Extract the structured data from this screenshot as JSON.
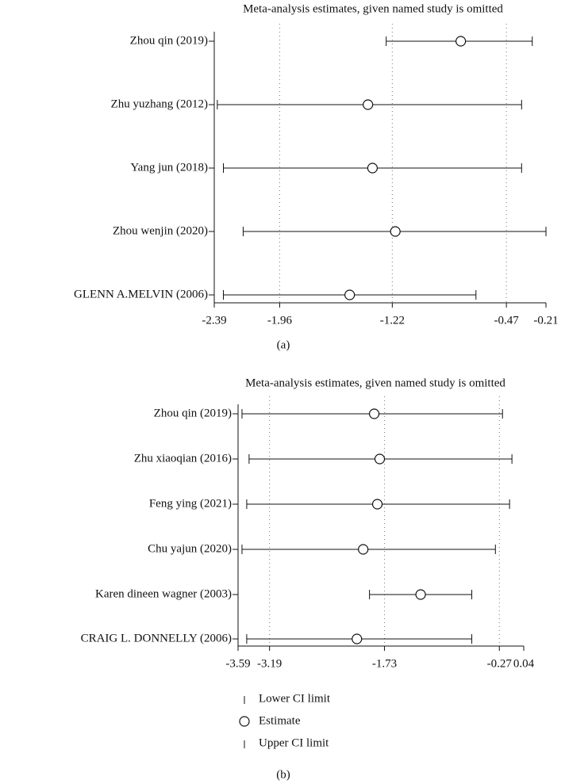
{
  "chart_data": [
    {
      "type": "forest",
      "title": "Meta-analysis estimates, given named study is omitted",
      "caption": "(a)",
      "categories": [
        "Zhou qin (2019)",
        "Zhu yuzhang (2012)",
        "Yang jun (2018)",
        "Zhou wenjin (2020)",
        "GLENN A.MELVIN (2006)"
      ],
      "series": [
        {
          "values": [
            -1.26,
            -2.37,
            -2.33,
            -2.2,
            -2.33
          ]
        },
        {
          "values": [
            -0.77,
            -1.38,
            -1.35,
            -1.2,
            -1.5
          ]
        },
        {
          "values": [
            -0.3,
            -0.37,
            -0.37,
            -0.21,
            -0.67
          ]
        }
      ],
      "xlim": [
        -2.39,
        -0.21
      ],
      "xticks": [
        -2.39,
        -1.96,
        -1.22,
        -0.47,
        -0.21
      ],
      "grid": true
    },
    {
      "type": "forest",
      "title": "Meta-analysis estimates, given named study is omitted",
      "caption": "(b)",
      "categories": [
        "Zhou qin (2019)",
        "Zhu xiaoqian (2016)",
        "Feng ying (2021)",
        "Chu yajun (2020)",
        "Karen dineen wagner (2003)",
        "CRAIG L. DONNELLY (2006)"
      ],
      "series": [
        {
          "name": "Lower CI limit",
          "values": [
            -3.54,
            -3.45,
            -3.48,
            -3.54,
            -1.92,
            -3.48
          ]
        },
        {
          "name": "Estimate",
          "values": [
            -1.86,
            -1.79,
            -1.82,
            -2.0,
            -1.27,
            -2.08
          ]
        },
        {
          "name": "Upper CI limit",
          "values": [
            -0.23,
            -0.11,
            -0.14,
            -0.32,
            -0.62,
            -0.62
          ]
        }
      ],
      "xlim": [
        -3.59,
        0.04
      ],
      "xticks": [
        -3.59,
        -3.19,
        -1.73,
        -0.27,
        0.04
      ],
      "grid": true
    }
  ]
}
